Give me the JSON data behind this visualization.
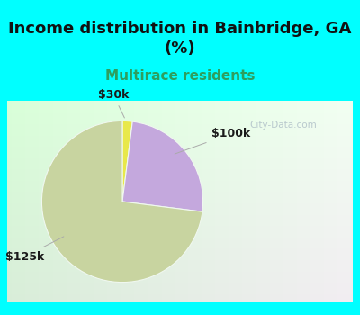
{
  "title": "Income distribution in Bainbridge, GA\n(%)",
  "subtitle": "Multirace residents",
  "title_color": "#111111",
  "subtitle_color": "#2e9e5e",
  "slices": [
    {
      "label": "$30k",
      "value": 2,
      "color": "#e8e84a"
    },
    {
      "label": "$100k",
      "value": 25,
      "color": "#c4a8dd"
    },
    {
      "label": "$125k",
      "value": 73,
      "color": "#c8d4a0"
    }
  ],
  "bg_cyan": "#00ffff",
  "bg_chart": "#e0f5e0",
  "startangle": 90,
  "title_fontsize": 13,
  "subtitle_fontsize": 11,
  "annot_fontsize": 9,
  "watermark": "City-Data.com",
  "watermark_color": "#b0c0c8",
  "label_color": "#1a1a1a"
}
